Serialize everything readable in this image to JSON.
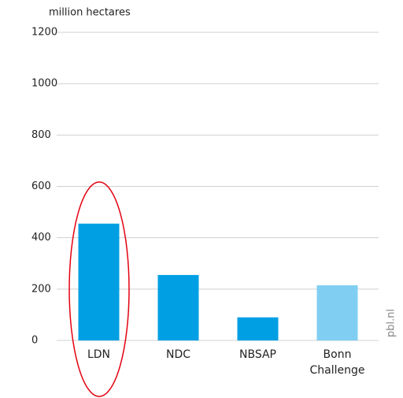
{
  "chart_data": {
    "type": "bar",
    "y_axis_label": "million hectares",
    "categories": [
      "LDN",
      "NDC",
      "NBSAP",
      "Bonn Challenge"
    ],
    "values": [
      455,
      255,
      90,
      215
    ],
    "colors": [
      "#009fe3",
      "#009fe3",
      "#009fe3",
      "#80cff3"
    ],
    "ylim": [
      0,
      1200
    ],
    "yticks": [
      0,
      200,
      400,
      600,
      800,
      1000,
      1200
    ],
    "grid": true,
    "source": "pbl.nl"
  }
}
